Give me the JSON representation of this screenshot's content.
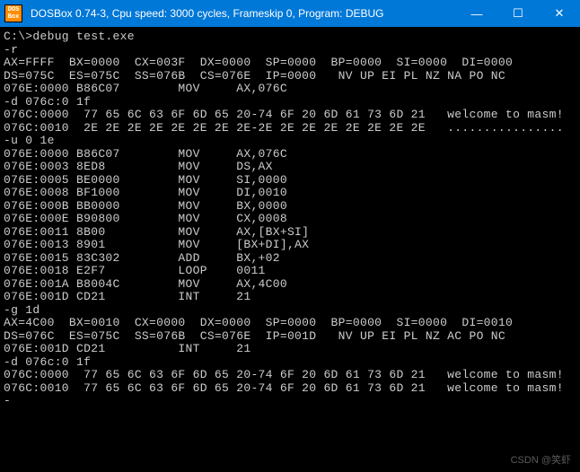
{
  "titlebar": {
    "icon_text": "DOS\nBox",
    "title": "DOSBox 0.74-3, Cpu speed:    3000 cycles, Frameskip  0, Program:    DEBUG",
    "accent_color": "#0078d7",
    "minimize": "—",
    "maximize": "☐",
    "close": "✕"
  },
  "terminal": {
    "background": "#000000",
    "text_color": "#cccccc",
    "font_size": 13,
    "lines": [
      "",
      "C:\\>debug test.exe",
      "-r",
      "AX=FFFF  BX=0000  CX=003F  DX=0000  SP=0000  BP=0000  SI=0000  DI=0000",
      "DS=075C  ES=075C  SS=076B  CS=076E  IP=0000   NV UP EI PL NZ NA PO NC",
      "076E:0000 B86C07        MOV     AX,076C",
      "-d 076c:0 1f",
      "076C:0000  77 65 6C 63 6F 6D 65 20-74 6F 20 6D 61 73 6D 21   welcome to masm!",
      "076C:0010  2E 2E 2E 2E 2E 2E 2E 2E-2E 2E 2E 2E 2E 2E 2E 2E   ................",
      "-u 0 1e",
      "076E:0000 B86C07        MOV     AX,076C",
      "076E:0003 8ED8          MOV     DS,AX",
      "076E:0005 BE0000        MOV     SI,0000",
      "076E:0008 BF1000        MOV     DI,0010",
      "076E:000B BB0000        MOV     BX,0000",
      "076E:000E B90800        MOV     CX,0008",
      "076E:0011 8B00          MOV     AX,[BX+SI]",
      "076E:0013 8901          MOV     [BX+DI],AX",
      "076E:0015 83C302        ADD     BX,+02",
      "076E:0018 E2F7          LOOP    0011",
      "076E:001A B8004C        MOV     AX,4C00",
      "076E:001D CD21          INT     21",
      "-g 1d",
      "",
      "AX=4C00  BX=0010  CX=0000  DX=0000  SP=0000  BP=0000  SI=0000  DI=0010",
      "DS=076C  ES=075C  SS=076B  CS=076E  IP=001D   NV UP EI PL NZ AC PO NC",
      "076E:001D CD21          INT     21",
      "-d 076c:0 1f",
      "076C:0000  77 65 6C 63 6F 6D 65 20-74 6F 20 6D 61 73 6D 21   welcome to masm!",
      "076C:0010  77 65 6C 63 6F 6D 65 20-74 6F 20 6D 61 73 6D 21   welcome to masm!",
      "-"
    ]
  },
  "watermark": "CSDN @笑虾"
}
